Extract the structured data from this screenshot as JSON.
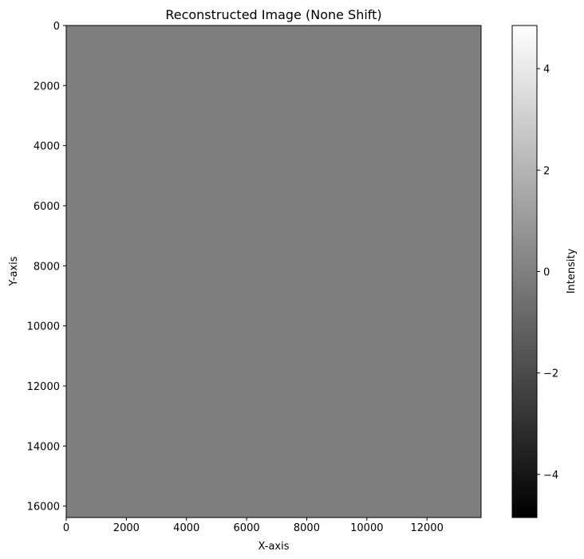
{
  "chart_data": {
    "type": "heatmap",
    "title": "Reconstructed Image (None Shift)",
    "xlabel": "X-axis",
    "ylabel": "Y-axis",
    "xlim": [
      0,
      13800
    ],
    "ylim": [
      16380,
      0
    ],
    "x_ticks": [
      0,
      2000,
      4000,
      6000,
      8000,
      10000,
      12000
    ],
    "y_ticks": [
      0,
      2000,
      4000,
      6000,
      8000,
      10000,
      12000,
      14000,
      16000
    ],
    "colormap": "gray",
    "image_value": 0,
    "image_color": "#7f7f7f",
    "colorbar": {
      "label": "Intensity",
      "range": [
        -4.85,
        4.85
      ],
      "ticks": [
        -4,
        -2,
        0,
        2,
        4
      ],
      "tick_labels": [
        "−4",
        "−2",
        "0",
        "2",
        "4"
      ]
    }
  }
}
